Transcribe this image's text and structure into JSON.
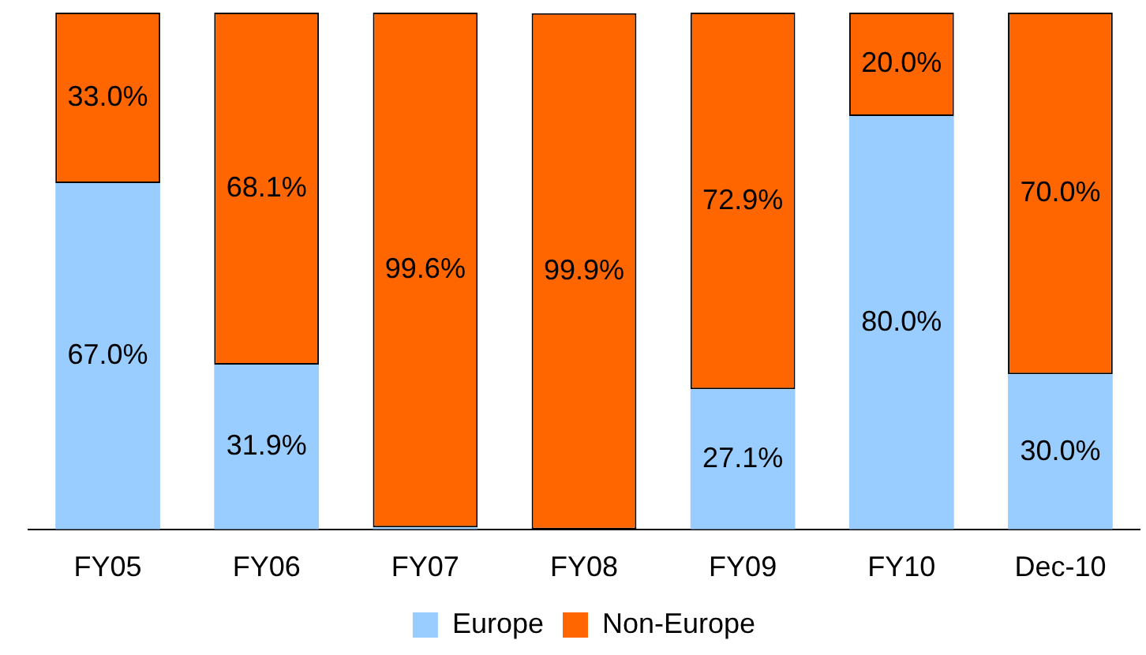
{
  "chart_data": {
    "type": "bar",
    "stacked": true,
    "categories": [
      "FY05",
      "FY06",
      "FY07",
      "FY08",
      "FY09",
      "FY10",
      "Dec-10"
    ],
    "series": [
      {
        "name": "Europe",
        "color": "#99ccff",
        "values": [
          67.0,
          31.9,
          0.4,
          null,
          27.1,
          80.0,
          30.0
        ],
        "value_labels": [
          "67.0%",
          "31.9%",
          null,
          null,
          "27.1%",
          "80.0%",
          "30.0%"
        ]
      },
      {
        "name": "Non-Europe",
        "color": "#ff6600",
        "values": [
          33.0,
          68.1,
          99.6,
          99.9,
          72.9,
          20.0,
          70.0
        ],
        "value_labels": [
          "33.0%",
          "68.1%",
          "99.6%",
          "99.9%",
          "72.9%",
          "20.0%",
          "70.0%"
        ]
      }
    ],
    "ylim": [
      0,
      100
    ],
    "tick_labels": "x",
    "grid": false,
    "legend": "bottom"
  }
}
